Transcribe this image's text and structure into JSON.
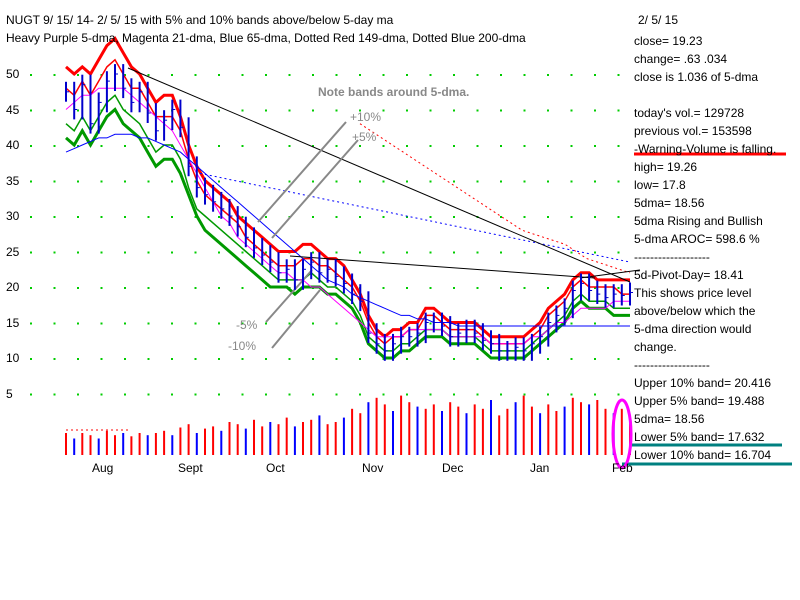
{
  "header": {
    "title_line1": "NUGT   9/ 15/ 14- 2/ 5/ 15 with  5% and 10% bands above/below 5-day ma",
    "title_line2": "Heavy Purple 5-dma, Magenta 21-dma, Blue 65-dma, Dotted Red 149-dma, Dotted Blue 200-dma",
    "date": "2/ 5/ 15"
  },
  "stats": [
    "close=  19.23",
    "change=  .63   .034",
    "close is  1.036  of 5-dma",
    "",
    "today's vol.=  129728",
    "previous vol.=  153598",
    "-Warning-Volume is falling.",
    "high=  19.26",
    "low=  17.8",
    "5dma=  18.56",
    "5dma Rising and Bullish",
    "5-dma AROC=   598.6  %",
    "-------------------",
    "5d-Pivot-Day= 18.41",
    "This shows price level",
    "above/below which the",
    "5-dma direction would",
    "change.",
    "-------------------",
    "Upper  10% band=  20.416",
    "Upper  5% band=  19.488",
    "5dma=  18.56",
    "Lower  5% band=  17.632",
    "Lower  10% band=  16.704"
  ],
  "annotations": {
    "note": "Note bands around 5-dma.",
    "plus10": "+10%",
    "plus5": "+5%",
    "minus5": "-5%",
    "minus10": "-10%"
  },
  "colors": {
    "price": "#0000cc",
    "upper_band": "#ff0000",
    "lower_band": "#009900",
    "ma21": "#ff00ff",
    "ma65": "#0000ff",
    "ma149": "#ff0000",
    "ma200": "#0000ff",
    "grid_dots": "#00cc00",
    "vol_up": "#ff0000",
    "vol_down": "#0000ff",
    "highlight_red": "#ff0000",
    "highlight_teal": "#008080",
    "highlight_magenta": "#ff00ff"
  },
  "chart_data": {
    "type": "bar",
    "title": "NUGT   9/ 15/ 14- 2/ 5/ 15 with  5% and 10% bands above/below 5-day ma",
    "y_ticks": [
      "50",
      "45",
      "40",
      "35",
      "30",
      "25",
      "20",
      "15",
      "10",
      "5"
    ],
    "ylim": [
      0,
      55
    ],
    "x_ticks": [
      "Aug",
      "Sept",
      "Oct",
      "Nov",
      "Dec",
      "Jan",
      "Feb"
    ],
    "grid": "dotted",
    "price_closes": [
      47.5,
      45.0,
      48.5,
      43.0,
      46.0,
      49.0,
      50.0,
      48.0,
      46.0,
      47.5,
      44.5,
      42.0,
      43.5,
      45.0,
      42.5,
      37.0,
      34.0,
      33.0,
      32.0,
      31.0,
      30.0,
      28.5,
      27.0,
      25.5,
      24.5,
      23.5,
      22.0,
      22.5,
      21.0,
      22.5,
      23.5,
      22.0,
      22.5,
      21.5,
      20.5,
      19.0,
      18.0,
      13.5,
      12.0,
      11.0,
      12.0,
      13.0,
      13.0,
      13.5,
      15.0,
      15.0,
      14.5,
      13.0,
      13.5,
      14.0,
      13.5,
      12.5,
      12.0,
      11.0,
      11.0,
      11.5,
      11.0,
      12.0,
      13.0,
      15.0,
      16.0,
      17.0,
      19.5,
      20.5,
      19.5,
      19.0,
      18.5,
      19.0,
      18.8,
      19.23
    ],
    "series": [
      {
        "values": [
          51,
          50,
          51,
          50,
          52,
          54,
          55,
          53,
          51,
          50,
          48,
          46,
          47,
          47,
          44,
          40,
          37,
          35,
          34,
          33,
          32,
          30,
          29,
          28,
          27,
          26,
          25,
          25,
          25,
          26,
          26,
          25,
          24,
          24,
          23,
          21,
          19,
          16,
          14,
          13,
          14,
          14,
          15,
          15,
          17,
          17,
          16,
          15,
          15,
          15,
          15,
          14,
          13,
          13,
          13,
          13,
          13,
          14,
          15,
          17,
          18,
          19,
          21,
          22,
          22,
          21,
          21,
          21,
          21,
          21
        ]
      },
      {
        "values": [
          48,
          47,
          49,
          47,
          49,
          51,
          52,
          50,
          48,
          48,
          46,
          44,
          44,
          44,
          42,
          38,
          35,
          33,
          32,
          31,
          30,
          29,
          27,
          26,
          25,
          24,
          23,
          23,
          23,
          24,
          24,
          23,
          23,
          22,
          21,
          20,
          18,
          15,
          13,
          12,
          13,
          13,
          14,
          14,
          16,
          16,
          15,
          14,
          14,
          14,
          14,
          13,
          12,
          12,
          12,
          12,
          12,
          13,
          14,
          16,
          17,
          18,
          20,
          21,
          20,
          20,
          20,
          20,
          19,
          19
        ]
      },
      {
        "values": [
          43,
          42,
          44,
          42,
          44,
          46,
          47,
          45,
          44,
          43,
          41,
          39,
          40,
          40,
          38,
          34,
          31,
          30,
          29,
          28,
          27,
          26,
          25,
          24,
          23,
          22,
          21,
          21,
          21,
          21,
          22,
          21,
          20,
          20,
          19,
          18,
          16,
          13,
          12,
          11,
          11,
          12,
          12,
          13,
          14,
          14,
          14,
          13,
          13,
          13,
          13,
          12,
          11,
          11,
          11,
          11,
          11,
          12,
          13,
          14,
          15,
          16,
          18,
          19,
          18,
          18,
          18,
          17,
          17,
          17
        ]
      },
      {
        "values": [
          41,
          40,
          42,
          40,
          42,
          44,
          45,
          43,
          42,
          41,
          39,
          37,
          38,
          38,
          36,
          33,
          30,
          28,
          27,
          26,
          25,
          24,
          23,
          22,
          21,
          20,
          20,
          20,
          19,
          20,
          20,
          20,
          19,
          19,
          18,
          17,
          15,
          12,
          11,
          10,
          10,
          11,
          11,
          12,
          13,
          13,
          13,
          12,
          12,
          12,
          12,
          11,
          10,
          10,
          10,
          10,
          10,
          11,
          12,
          13,
          14,
          15,
          17,
          18,
          17,
          17,
          17,
          16,
          16,
          16
        ]
      },
      {
        "values": [
          45,
          46,
          47,
          47,
          48,
          48,
          48,
          48,
          47,
          46,
          45,
          44,
          43,
          42,
          40,
          38,
          36,
          34,
          32,
          30,
          29,
          27,
          26,
          25,
          24,
          23,
          22,
          22,
          21,
          21,
          20,
          20,
          19,
          18,
          17,
          16,
          15,
          14,
          13,
          13,
          13,
          13,
          14,
          14,
          14,
          14,
          14,
          13,
          13,
          13,
          13,
          13,
          12,
          12,
          12,
          12,
          12,
          13,
          13,
          14,
          15,
          15,
          16,
          17,
          17,
          17,
          17,
          18,
          18,
          18
        ]
      },
      {
        "values": [
          39,
          39.5,
          40,
          40.5,
          41,
          41,
          41.5,
          41.5,
          41.5,
          41,
          41,
          40.5,
          40,
          39.5,
          39,
          38,
          37,
          36,
          35,
          34,
          33,
          32,
          31,
          30,
          29,
          28,
          27,
          26,
          25,
          24,
          23,
          22,
          21,
          20.5,
          20,
          19,
          18.5,
          18,
          17.5,
          17,
          16.5,
          16,
          16,
          15.5,
          15.5,
          15,
          15,
          15,
          14.5,
          14.5,
          14.5,
          14.5,
          14.5,
          14.5,
          14.5,
          14.5,
          14.5,
          14.5,
          14.5,
          14.5,
          14.5,
          14.5,
          14.5,
          14.5,
          14.5,
          14.5,
          14.5,
          14.5,
          14.5,
          14.5
        ]
      },
      {
        "values": [
          43,
          42,
          41,
          40,
          39,
          38,
          37,
          36,
          35,
          34,
          33,
          32,
          31,
          30,
          29,
          28,
          27.5,
          27,
          26.5,
          26,
          25,
          24,
          23.5,
          23,
          22.5,
          22
        ]
      },
      {
        "values": [
          36,
          35.5,
          35,
          34.5,
          34,
          33.5,
          33,
          32.5,
          32,
          31.5,
          31,
          30.5,
          30,
          29.5,
          29,
          28.5,
          28,
          27.5,
          27,
          26.5,
          26,
          25.5,
          25,
          24.5,
          24,
          23.5
        ]
      }
    ],
    "volume": [
      2.0,
      1.5,
      2.0,
      1.8,
      1.5,
      2.2,
      1.8,
      2.0,
      1.7,
      2.0,
      1.8,
      2.0,
      2.2,
      1.8,
      2.5,
      2.8,
      2.0,
      2.4,
      2.6,
      2.2,
      3.0,
      2.8,
      2.4,
      3.2,
      2.6,
      3.0,
      2.8,
      3.4,
      2.6,
      3.0,
      3.2,
      3.6,
      2.8,
      3.0,
      3.4,
      4.2,
      3.8,
      4.8,
      5.2,
      4.6,
      4.0,
      5.4,
      4.8,
      4.4,
      4.2,
      4.6,
      4.0,
      4.8,
      4.4,
      3.8,
      4.6,
      4.2,
      5.0,
      3.6,
      4.2,
      4.8,
      5.4,
      4.4,
      3.8,
      4.6,
      4.0,
      4.4,
      5.2,
      4.8,
      4.6,
      5.0,
      4.2,
      3.8,
      4.2,
      3.6
    ]
  }
}
